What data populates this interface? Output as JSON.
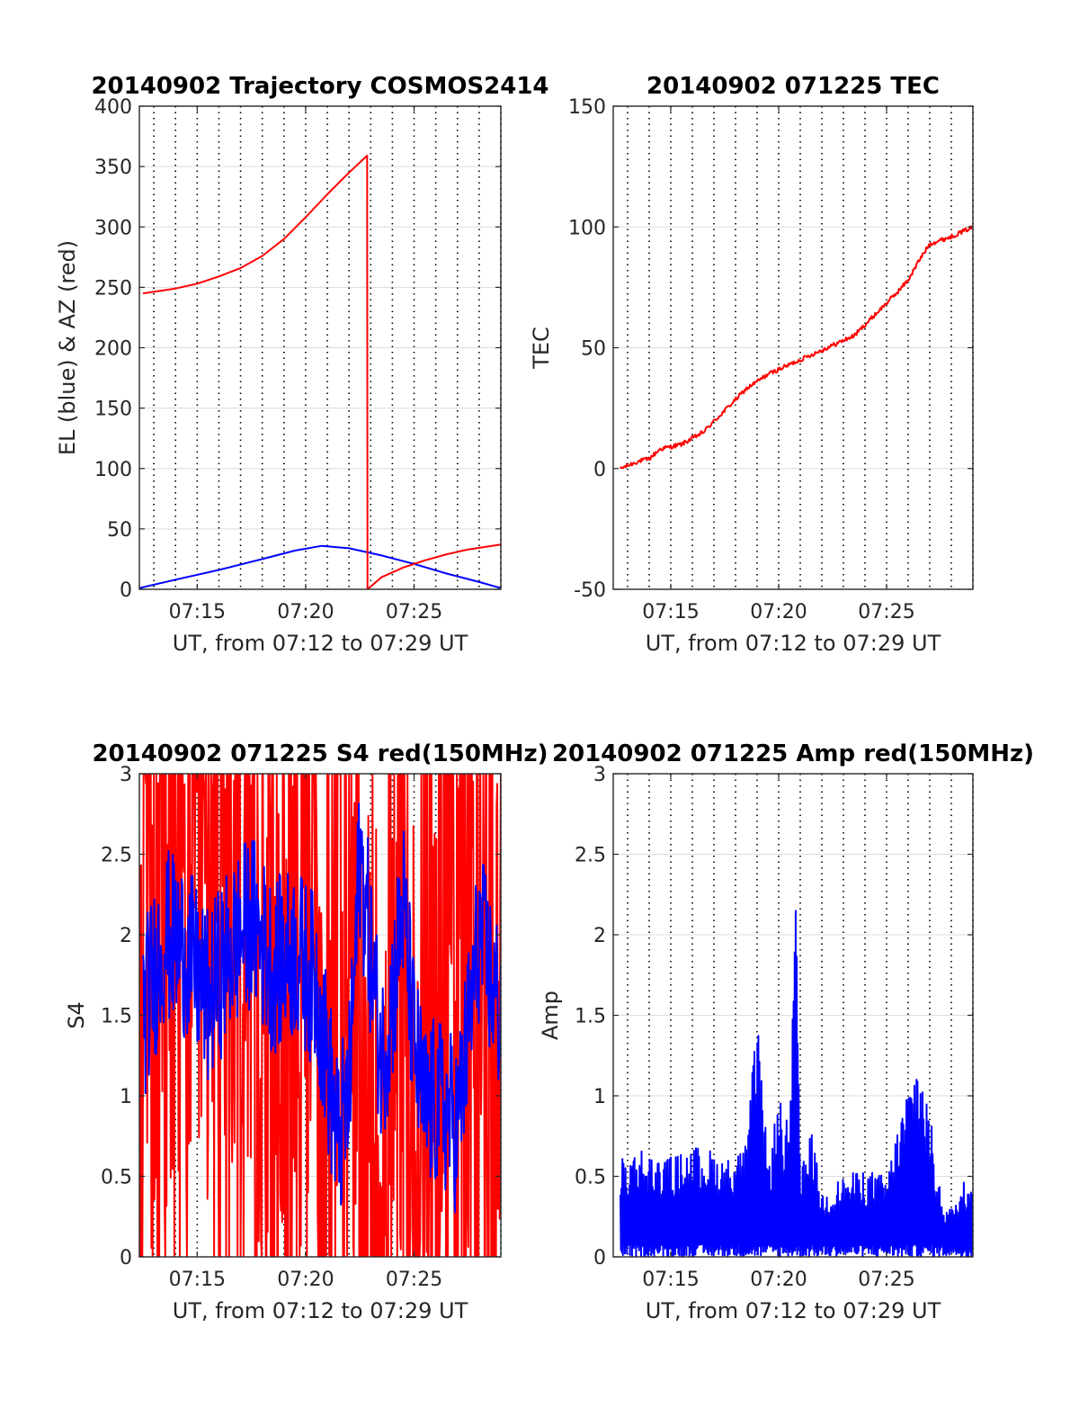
{
  "chart_data": [
    {
      "id": "trajectory",
      "type": "line",
      "title": "20140902 Trajectory COSMOS2414",
      "xlabel": "UT, from 07:12 to 07:29 UT",
      "ylabel": "EL (blue) & AZ (red)",
      "xlim": [
        "07:12:20",
        "07:29:00"
      ],
      "ylim": [
        0,
        400
      ],
      "yticks": [
        "0",
        "50",
        "100",
        "150",
        "200",
        "250",
        "300",
        "350",
        "400"
      ],
      "xticks": [
        "07:15",
        "07:20",
        "07:25"
      ],
      "grid": "x-dotted, y-light",
      "series": [
        {
          "label": "EL",
          "color": "#0000ff",
          "x": [
            "07:12:20",
            "07:14:00",
            "07:16:00",
            "07:18:00",
            "07:19:30",
            "07:20:45",
            "07:22:00",
            "07:23:30",
            "07:25:00",
            "07:26:30",
            "07:28:00",
            "07:29:00"
          ],
          "y": [
            1,
            8,
            16,
            25,
            32,
            36,
            34,
            28,
            21,
            13,
            6,
            1
          ]
        },
        {
          "label": "AZ",
          "color": "#ff0000",
          "x": [
            "07:12:30",
            "07:14:00",
            "07:15:00",
            "07:16:00",
            "07:17:00",
            "07:18:00",
            "07:19:00",
            "07:20:00",
            "07:21:00",
            "07:22:00",
            "07:22:50",
            "07:22:51",
            "07:23:30",
            "07:24:30",
            "07:25:30",
            "07:26:30",
            "07:27:30",
            "07:29:00"
          ],
          "y": [
            245,
            249,
            253,
            259,
            266,
            276,
            290,
            308,
            327,
            345,
            359,
            0,
            10,
            18,
            24,
            29,
            33,
            37
          ]
        }
      ]
    },
    {
      "id": "tec",
      "type": "line",
      "title": "20140902 071225 TEC",
      "xlabel": "UT, from 07:12 to 07:29 UT",
      "ylabel": "TEC",
      "xlim": [
        "07:12:20",
        "07:29:00"
      ],
      "ylim": [
        -50,
        150
      ],
      "yticks": [
        "-50",
        "0",
        "50",
        "100",
        "150"
      ],
      "xticks": [
        "07:15",
        "07:20",
        "07:25"
      ],
      "grid": "x-dotted, y-light",
      "series": [
        {
          "label": "TEC",
          "color": "#ff0000",
          "x": [
            "07:12:40",
            "07:13:30",
            "07:14:00",
            "07:14:30",
            "07:15:30",
            "07:16:30",
            "07:17:30",
            "07:18:30",
            "07:19:30",
            "07:20:30",
            "07:21:30",
            "07:22:30",
            "07:23:30",
            "07:24:30",
            "07:25:30",
            "07:26:00",
            "07:26:30",
            "07:27:00",
            "07:28:00",
            "07:29:00"
          ],
          "y": [
            0,
            3,
            4,
            8,
            10,
            15,
            24,
            33,
            39,
            43,
            47,
            51,
            55,
            64,
            73,
            78,
            86,
            93,
            96,
            100
          ]
        }
      ]
    },
    {
      "id": "s4",
      "type": "line",
      "title": "20140902 071225 S4 red(150MHz)",
      "xlabel": "UT, from 07:12 to 07:29 UT",
      "ylabel": "S4",
      "xlim": [
        "07:12:20",
        "07:29:00"
      ],
      "ylim": [
        0,
        3
      ],
      "yticks": [
        "0",
        "0.5",
        "1",
        "1.5",
        "2",
        "2.5",
        "3"
      ],
      "xticks": [
        "07:15",
        "07:20",
        "07:25"
      ],
      "grid": "x-dotted, y-light",
      "series": [
        {
          "label": "S4 red",
          "color": "#ff0000",
          "x": [
            "07:12:20",
            "07:13:30",
            "07:14:30",
            "07:15:30",
            "07:16:30",
            "07:17:30",
            "07:18:30",
            "07:19:30",
            "07:20:30",
            "07:21:30",
            "07:22:30",
            "07:23:30",
            "07:24:30",
            "07:25:30",
            "07:26:30",
            "07:27:00",
            "07:28:00",
            "07:29:00"
          ],
          "y": [
            2.9,
            1.5,
            2.5,
            2.0,
            2.8,
            2.4,
            1.8,
            2.2,
            1.6,
            1.3,
            0.8,
            0.6,
            0.5,
            0.9,
            2.8,
            2.9,
            1.5,
            0.9
          ]
        },
        {
          "label": "S4 blue",
          "color": "#0000ff",
          "x": [
            "07:12:30",
            "07:13:30",
            "07:14:30",
            "07:15:30",
            "07:16:30",
            "07:17:30",
            "07:18:30",
            "07:19:30",
            "07:20:30",
            "07:21:00",
            "07:21:30",
            "07:22:00",
            "07:22:30",
            "07:23:00",
            "07:23:30",
            "07:24:00",
            "07:24:30",
            "07:25:00",
            "07:25:30",
            "07:26:00",
            "07:26:30",
            "07:27:00",
            "07:28:00",
            "07:29:00"
          ],
          "y": [
            1.5,
            2.0,
            1.9,
            1.6,
            1.9,
            2.1,
            1.8,
            1.9,
            1.7,
            1.2,
            0.7,
            1.0,
            2.5,
            1.9,
            1.2,
            1.6,
            2.2,
            1.3,
            0.9,
            0.95,
            0.9,
            0.8,
            2.0,
            1.5
          ]
        }
      ]
    },
    {
      "id": "amp",
      "type": "line",
      "title": "20140902 071225 Amp red(150MHz)",
      "xlabel": "UT, from 07:12 to 07:29 UT",
      "ylabel": "Amp",
      "xlim": [
        "07:12:20",
        "07:29:00"
      ],
      "ylim": [
        0,
        3
      ],
      "yticks": [
        "0",
        "0.5",
        "1",
        "1.5",
        "2",
        "2.5",
        "3"
      ],
      "xticks": [
        "07:15",
        "07:20",
        "07:25"
      ],
      "grid": "x-dotted, y-light",
      "series": [
        {
          "label": "Amp",
          "color": "#0000ff",
          "x": [
            "07:12:40",
            "07:13:30",
            "07:14:30",
            "07:15:30",
            "07:16:30",
            "07:17:30",
            "07:18:30",
            "07:19:00",
            "07:19:30",
            "07:20:00",
            "07:20:30",
            "07:20:50",
            "07:21:00",
            "07:21:30",
            "07:22:00",
            "07:23:00",
            "07:24:00",
            "07:25:00",
            "07:25:30",
            "07:26:00",
            "07:26:30",
            "07:27:00",
            "07:27:30",
            "07:28:00",
            "07:29:00"
          ],
          "y": [
            0.6,
            0.7,
            0.6,
            0.65,
            0.7,
            0.6,
            0.7,
            1.5,
            0.6,
            1.0,
            0.8,
            2.4,
            0.5,
            0.8,
            0.4,
            0.5,
            0.55,
            0.5,
            0.8,
            1.1,
            1.3,
            0.9,
            0.4,
            0.3,
            0.6
          ]
        }
      ]
    }
  ]
}
